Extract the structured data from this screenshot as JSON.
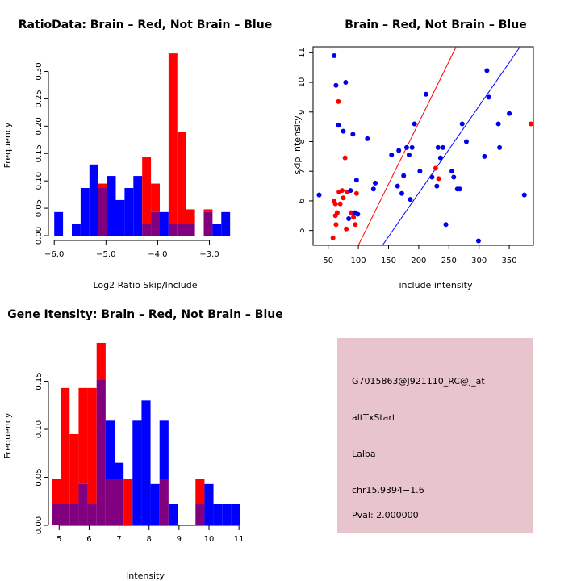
{
  "colors": {
    "red": "#ff0000",
    "blue": "#0000ff",
    "overlap": "#800080",
    "darkred": "#8b0000",
    "panel": "#e8c4cc",
    "point_red": "#ff0000",
    "point_blue": "#0000ee"
  },
  "chart_data": [
    {
      "type": "bar",
      "title": "RatioData: Brain – Red, Not Brain – Blue",
      "xlabel": "Log2 Ratio Skip/Include",
      "ylabel": "Frequency",
      "xlim": [
        -6.05,
        -2.4
      ],
      "ylim": [
        0,
        0.345
      ],
      "xticks": [
        -6.0,
        -5.0,
        -4.0,
        -3.0
      ],
      "xtick_labels": [
        "−6.0",
        "−5.0",
        "−4.0",
        "−3.0"
      ],
      "yticks": [
        0,
        0.05,
        0.1,
        0.15,
        0.2,
        0.25,
        0.3
      ],
      "ytick_labels": [
        "0.00",
        "0.05",
        "0.10",
        "0.15",
        "0.20",
        "0.25",
        "0.30"
      ],
      "bin_width": 0.17,
      "bin_starts": [
        -6.0,
        -5.83,
        -5.66,
        -5.49,
        -5.32,
        -5.15,
        -4.98,
        -4.81,
        -4.64,
        -4.47,
        -4.3,
        -4.13,
        -3.96,
        -3.79,
        -3.62,
        -3.45,
        -3.28,
        -3.11,
        -2.94,
        -2.77,
        -2.6
      ],
      "series": [
        {
          "name": "Brain",
          "color": "red",
          "values": [
            0,
            0,
            0,
            0,
            0,
            0.095,
            0,
            0,
            0,
            0,
            0.143,
            0.095,
            0,
            0.333,
            0.19,
            0.048,
            0,
            0.048,
            0,
            0,
            0
          ]
        },
        {
          "name": "Not Brain",
          "color": "blue",
          "values": [
            0.043,
            0,
            0.022,
            0.087,
            0.13,
            0.087,
            0.109,
            0.065,
            0.087,
            0.109,
            0.022,
            0.043,
            0.043,
            0.022,
            0.022,
            0.022,
            0,
            0.043,
            0.022,
            0.043,
            0
          ]
        }
      ]
    },
    {
      "type": "scatter",
      "title": "Brain – Red, Not Brain – Blue",
      "xlabel": "include intensity",
      "ylabel": "skip intensity",
      "xlim": [
        25,
        390
      ],
      "ylim": [
        4.5,
        11.2
      ],
      "xticks": [
        50,
        100,
        150,
        200,
        250,
        300,
        350
      ],
      "xtick_labels": [
        "50",
        "100",
        "150",
        "200",
        "250",
        "300",
        "350"
      ],
      "yticks": [
        5,
        6,
        7,
        8,
        9,
        10,
        11
      ],
      "ytick_labels": [
        "5",
        "6",
        "7",
        "8",
        "9",
        "10",
        "11"
      ],
      "lines": [
        {
          "color": "red",
          "x1": 100,
          "y1": 4.5,
          "x2": 262,
          "y2": 11.2
        },
        {
          "color": "blue",
          "x1": 140,
          "y1": 4.5,
          "x2": 368,
          "y2": 11.2
        }
      ],
      "series": [
        {
          "name": "Brain",
          "color": "point_red",
          "points": [
            [
              58,
              4.75
            ],
            [
              60,
              6.0
            ],
            [
              62,
              5.9
            ],
            [
              62,
              5.5
            ],
            [
              63,
              5.2
            ],
            [
              65,
              5.6
            ],
            [
              67,
              9.35
            ],
            [
              68,
              6.3
            ],
            [
              70,
              5.9
            ],
            [
              73,
              6.35
            ],
            [
              75,
              6.1
            ],
            [
              78,
              7.45
            ],
            [
              80,
              5.05
            ],
            [
              82,
              6.3
            ],
            [
              88,
              5.6
            ],
            [
              92,
              5.45
            ],
            [
              95,
              5.2
            ],
            [
              97,
              6.25
            ],
            [
              228,
              7.1
            ],
            [
              233,
              6.75
            ],
            [
              386,
              8.6
            ]
          ]
        },
        {
          "name": "Not Brain",
          "color": "point_blue",
          "points": [
            [
              35,
              6.2
            ],
            [
              60,
              10.9
            ],
            [
              63,
              9.9
            ],
            [
              67,
              8.55
            ],
            [
              75,
              8.35
            ],
            [
              79,
              10.0
            ],
            [
              84,
              5.4
            ],
            [
              87,
              6.35
            ],
            [
              91,
              8.25
            ],
            [
              94,
              5.6
            ],
            [
              97,
              6.7
            ],
            [
              99,
              5.55
            ],
            [
              115,
              8.1
            ],
            [
              125,
              6.4
            ],
            [
              128,
              6.6
            ],
            [
              155,
              7.55
            ],
            [
              165,
              6.5
            ],
            [
              167,
              7.7
            ],
            [
              172,
              6.25
            ],
            [
              175,
              6.85
            ],
            [
              180,
              7.8
            ],
            [
              184,
              7.55
            ],
            [
              186,
              6.05
            ],
            [
              189,
              7.8
            ],
            [
              193,
              8.6
            ],
            [
              202,
              7.0
            ],
            [
              212,
              9.6
            ],
            [
              222,
              6.8
            ],
            [
              230,
              6.5
            ],
            [
              232,
              7.8
            ],
            [
              236,
              7.45
            ],
            [
              240,
              7.8
            ],
            [
              245,
              5.2
            ],
            [
              255,
              7.0
            ],
            [
              258,
              6.8
            ],
            [
              264,
              6.4
            ],
            [
              268,
              6.4
            ],
            [
              272,
              8.6
            ],
            [
              279,
              8.0
            ],
            [
              299,
              4.65
            ],
            [
              309,
              7.5
            ],
            [
              313,
              10.4
            ],
            [
              316,
              9.5
            ],
            [
              332,
              8.6
            ],
            [
              334,
              7.8
            ],
            [
              350,
              8.95
            ],
            [
              375,
              6.2
            ]
          ]
        }
      ]
    },
    {
      "type": "bar",
      "title": "Gene Itensity: Brain – Red, Not Brain – Blue",
      "xlabel": "Intensity",
      "ylabel": "Frequency",
      "xlim": [
        4.75,
        11.05
      ],
      "ylim": [
        0,
        0.195
      ],
      "xticks": [
        5,
        6,
        7,
        8,
        9,
        10,
        11
      ],
      "xtick_labels": [
        "5",
        "6",
        "7",
        "8",
        "9",
        "10",
        "11"
      ],
      "yticks": [
        0,
        0.05,
        0.1,
        0.15
      ],
      "ytick_labels": [
        "0.00",
        "0.05",
        "0.10",
        "0.15"
      ],
      "bin_width": 0.3,
      "bin_starts": [
        4.75,
        5.05,
        5.35,
        5.65,
        5.95,
        6.25,
        6.55,
        6.85,
        7.15,
        7.45,
        7.75,
        8.05,
        8.35,
        8.65,
        8.95,
        9.25,
        9.55,
        9.85,
        10.15,
        10.45,
        10.75
      ],
      "series": [
        {
          "name": "Brain",
          "color": "red",
          "values": [
            0.048,
            0.143,
            0.095,
            0.143,
            0.143,
            0.19,
            0.048,
            0.048,
            0.048,
            0,
            0,
            0,
            0.048,
            0,
            0,
            0,
            0.048,
            0,
            0,
            0,
            0
          ]
        },
        {
          "name": "Not Brain",
          "color": "blue",
          "values": [
            0.022,
            0.022,
            0.022,
            0.043,
            0.022,
            0.152,
            0.109,
            0.065,
            0,
            0.109,
            0.13,
            0.043,
            0.109,
            0.022,
            0,
            0,
            0.022,
            0.043,
            0.022,
            0.022,
            0.022
          ]
        }
      ]
    }
  ],
  "info_panel": {
    "probe_id": "G7015863@J921110_RC@j_at",
    "event_type": "altTxStart",
    "gene": "Lalba",
    "location": "chr15.9394−1.6",
    "pval": "Pval: 2.000000"
  }
}
